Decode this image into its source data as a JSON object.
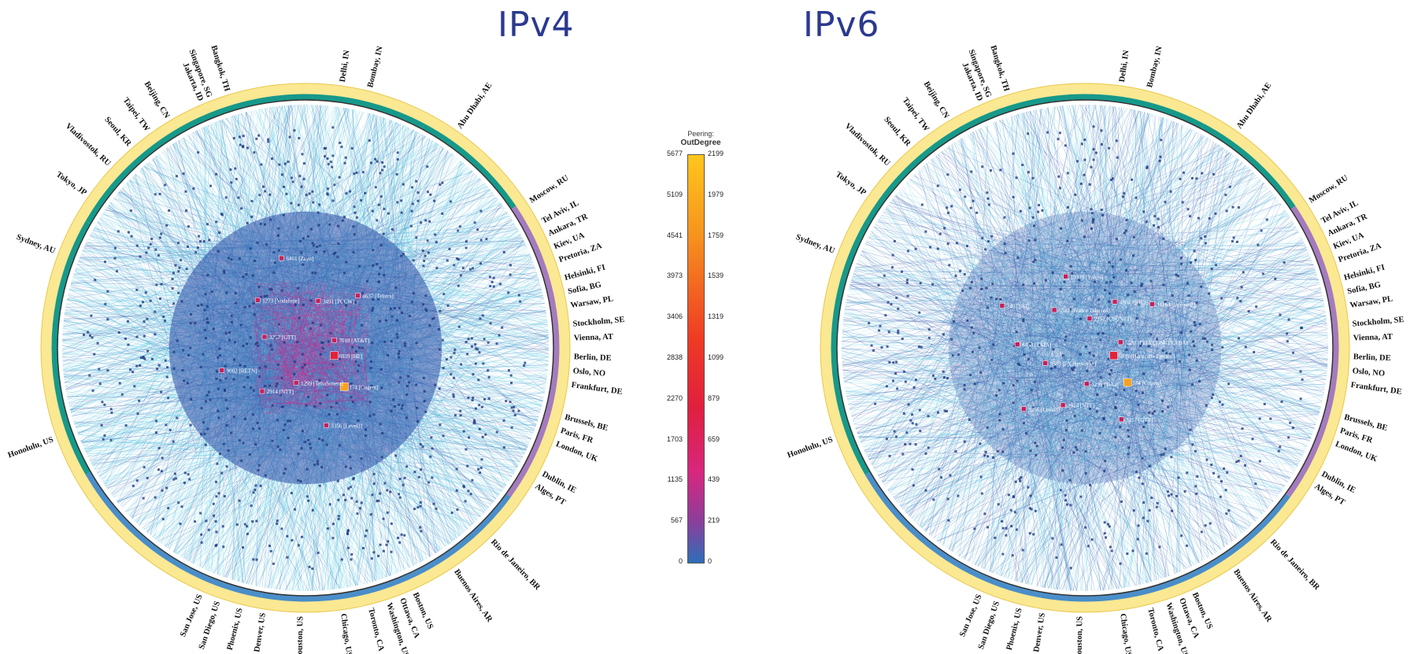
{
  "titles": {
    "ipv4": "IPv4",
    "ipv6": "IPv6"
  },
  "legend": {
    "title_line1": "Peering:",
    "title_line2": "OutDegree",
    "left_ticks": [
      "5677",
      "5109",
      "4541",
      "3973",
      "3406",
      "2838",
      "2270",
      "1703",
      "1135",
      "567",
      "0"
    ],
    "right_ticks": [
      "2199",
      "1979",
      "1759",
      "1539",
      "1319",
      "1099",
      "879",
      "659",
      "439",
      "219",
      "0"
    ]
  },
  "cities": [
    {
      "name": "Bangkok, TH",
      "angle": -107
    },
    {
      "name": "Singapore, SG",
      "angle": -111
    },
    {
      "name": "Jakarta, ID",
      "angle": -113
    },
    {
      "name": "Beijing, CN",
      "angle": -121
    },
    {
      "name": "Taipei, TW",
      "angle": -126
    },
    {
      "name": "Seoul, KR",
      "angle": -131
    },
    {
      "name": "Vladivostok, RU",
      "angle": -137
    },
    {
      "name": "Tokyo, JP",
      "angle": -145
    },
    {
      "name": "Sydney, AU",
      "angle": -159
    },
    {
      "name": "Delhi, IN",
      "angle": -82
    },
    {
      "name": "Bombay, IN",
      "angle": -76
    },
    {
      "name": "Abu Dhabi, AE",
      "angle": -55
    },
    {
      "name": "Moscow, RU",
      "angle": -33
    },
    {
      "name": "Tel Aviv, IL",
      "angle": -28
    },
    {
      "name": "Ankara, TR",
      "angle": -25
    },
    {
      "name": "Kiev, UA",
      "angle": -22
    },
    {
      "name": "Pretoria, ZA",
      "angle": -19
    },
    {
      "name": "Helsinki, FI",
      "angle": -15
    },
    {
      "name": "Sofia, BG",
      "angle": -12
    },
    {
      "name": "Warsaw, PL",
      "angle": -9
    },
    {
      "name": "Stockholm, SE",
      "angle": -5
    },
    {
      "name": "Vienna, AT",
      "angle": -2
    },
    {
      "name": "Berlin, DE",
      "angle": 2
    },
    {
      "name": "Oslo, NO",
      "angle": 5
    },
    {
      "name": "Frankfurt, DE",
      "angle": 8
    },
    {
      "name": "Brussels, BE",
      "angle": 15
    },
    {
      "name": "Paris, FR",
      "angle": 18
    },
    {
      "name": "London, UK",
      "angle": 21
    },
    {
      "name": "Dublin, IE",
      "angle": 28
    },
    {
      "name": "Alges, PT",
      "angle": 31
    },
    {
      "name": "Rio de Janeiro, BR",
      "angle": 46
    },
    {
      "name": "Buenos Aires, AR",
      "angle": 56
    },
    {
      "name": "Boston, US",
      "angle": 66
    },
    {
      "name": "Ottawa, CA",
      "angle": 69
    },
    {
      "name": "Washington, US",
      "angle": 72
    },
    {
      "name": "Toronto, CA",
      "angle": 76
    },
    {
      "name": "Chicago, US",
      "angle": 82
    },
    {
      "name": "Houston, US",
      "angle": 91
    },
    {
      "name": "Denver, US",
      "angle": 99
    },
    {
      "name": "Phoenix, US",
      "angle": 104
    },
    {
      "name": "San Diego, US",
      "angle": 109
    },
    {
      "name": "San Jose, US",
      "angle": 113
    },
    {
      "name": "Honolulu, US",
      "angle": 160
    }
  ],
  "ipv4_nodes": [
    {
      "label": "6939 [HE]"
    },
    {
      "label": "174 [Cogent]"
    },
    {
      "label": "3356 [Level3]"
    },
    {
      "label": "1299 [TeliaSonera]"
    },
    {
      "label": "2914 [NTT]"
    },
    {
      "label": "9002 [RETN]"
    },
    {
      "label": "3257 [GTT]"
    },
    {
      "label": "1273 [Vodafone]"
    },
    {
      "label": "6461 [Zayo]"
    },
    {
      "label": "3491 [PCCW]"
    },
    {
      "label": "4637 [Telstra]"
    },
    {
      "label": "7018 [AT&T]"
    }
  ],
  "ipv6_nodes": [
    {
      "label": "6939 [Hurricane Electric]"
    },
    {
      "label": "174 [Cogent]"
    },
    {
      "label": "3257 [GTT]"
    },
    {
      "label": "1299 [Telia]"
    },
    {
      "label": "2914 [NTT]"
    },
    {
      "label": "3356 [Level3]"
    },
    {
      "label": "9503 [FX Networks]"
    },
    {
      "label": "6453 [TATA]"
    },
    {
      "label": "2497 [IIJ]"
    },
    {
      "label": "5511 [France Telecom]"
    },
    {
      "label": "10310 [Yahoo]"
    },
    {
      "label": "2152 [CSUNET]"
    },
    {
      "label": "48047 [GCI]"
    },
    {
      "label": "11164 [Internet2]"
    },
    {
      "label": "5580 [FELECOM-TRADA]"
    }
  ]
}
